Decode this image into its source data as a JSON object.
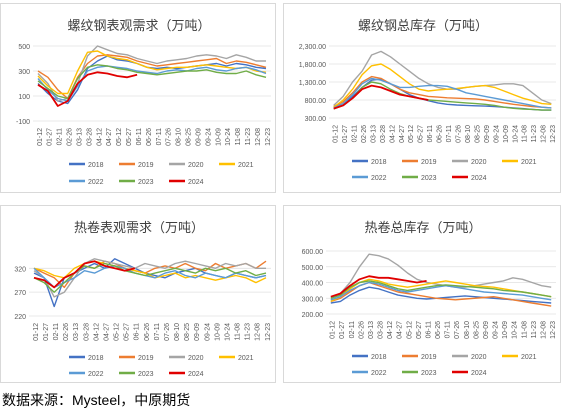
{
  "x_labels": [
    "01-12",
    "01-27",
    "02-11",
    "02-26",
    "03-13",
    "03-28",
    "04-12",
    "04-27",
    "05-12",
    "05-27",
    "06-11",
    "06-26",
    "07-11",
    "07-26",
    "08-10",
    "08-25",
    "09-09",
    "09-24",
    "10-09",
    "10-24",
    "11-08",
    "11-23",
    "12-08",
    "12-23"
  ],
  "series_names": [
    "2018",
    "2019",
    "2020",
    "2021",
    "2022",
    "2023",
    "2024"
  ],
  "colors": {
    "2018": "#4472c4",
    "2019": "#ed7d31",
    "2020": "#a5a5a5",
    "2021": "#ffc000",
    "2022": "#5b9bd5",
    "2023": "#70ad47",
    "2024": "#e00000"
  },
  "source_text": "数据来源：Mysteel，中原期货",
  "chart_data": [
    {
      "type": "line",
      "title": "螺纹钢表观需求（万吨）",
      "ylim": [
        -100,
        500
      ],
      "yticks": [
        "500",
        "300",
        "100",
        "-100"
      ],
      "ytick_values": [
        500,
        300,
        100,
        -100
      ],
      "series": [
        {
          "name": "2018",
          "values": [
            200,
            120,
            60,
            40,
            150,
            320,
            380,
            420,
            390,
            380,
            360,
            330,
            320,
            330,
            320,
            330,
            340,
            350,
            360,
            340,
            360,
            350,
            330,
            320
          ]
        },
        {
          "name": "2019",
          "values": [
            300,
            250,
            150,
            80,
            250,
            360,
            420,
            430,
            420,
            410,
            380,
            360,
            340,
            350,
            360,
            370,
            380,
            390,
            400,
            360,
            380,
            370,
            350,
            330
          ]
        },
        {
          "name": "2020",
          "values": [
            280,
            200,
            60,
            80,
            200,
            420,
            500,
            470,
            440,
            430,
            400,
            380,
            360,
            380,
            390,
            400,
            420,
            430,
            420,
            400,
            430,
            410,
            380,
            380
          ]
        },
        {
          "name": "2021",
          "values": [
            260,
            180,
            120,
            120,
            300,
            450,
            460,
            420,
            400,
            390,
            360,
            330,
            310,
            320,
            330,
            330,
            340,
            350,
            340,
            330,
            320,
            330,
            300,
            290
          ]
        },
        {
          "name": "2022",
          "values": [
            240,
            150,
            80,
            60,
            180,
            300,
            330,
            340,
            330,
            320,
            300,
            290,
            280,
            300,
            310,
            300,
            320,
            330,
            310,
            300,
            320,
            330,
            310,
            280
          ]
        },
        {
          "name": "2023",
          "values": [
            220,
            160,
            100,
            80,
            240,
            330,
            350,
            340,
            320,
            310,
            290,
            280,
            270,
            280,
            290,
            300,
            300,
            310,
            290,
            280,
            280,
            300,
            270,
            250
          ]
        },
        {
          "name": "2024",
          "values": [
            190,
            140,
            20,
            60,
            200,
            270,
            290,
            280,
            260,
            250,
            270
          ]
        }
      ]
    },
    {
      "type": "line",
      "title": "螺纹钢总库存（万吨）",
      "ylim": [
        300,
        2300
      ],
      "yticks": [
        "2,300.00",
        "1,800.00",
        "1,300.00",
        "800.00",
        "300.00"
      ],
      "ytick_values": [
        2300,
        1800,
        1300,
        800,
        300
      ],
      "series": [
        {
          "name": "2018",
          "values": [
            600,
            700,
            900,
            1150,
            1350,
            1380,
            1250,
            1100,
            950,
            850,
            780,
            720,
            680,
            660,
            650,
            640,
            630,
            620,
            600,
            580,
            560,
            540,
            520,
            520
          ]
        },
        {
          "name": "2019",
          "values": [
            620,
            750,
            1000,
            1300,
            1450,
            1400,
            1250,
            1100,
            1000,
            950,
            900,
            880,
            860,
            850,
            840,
            830,
            800,
            760,
            720,
            680,
            650,
            620,
            600,
            580
          ]
        },
        {
          "name": "2020",
          "values": [
            650,
            900,
            1300,
            1600,
            2050,
            2150,
            2000,
            1800,
            1600,
            1400,
            1250,
            1150,
            1100,
            1100,
            1150,
            1180,
            1200,
            1220,
            1250,
            1250,
            1200,
            1000,
            800,
            700
          ]
        },
        {
          "name": "2021",
          "values": [
            600,
            800,
            1100,
            1500,
            1750,
            1800,
            1650,
            1450,
            1250,
            1100,
            1050,
            1080,
            1100,
            1120,
            1150,
            1180,
            1200,
            1150,
            1050,
            950,
            850,
            780,
            700,
            680
          ]
        },
        {
          "name": "2022",
          "values": [
            580,
            700,
            950,
            1250,
            1400,
            1350,
            1250,
            1150,
            1150,
            1180,
            1200,
            1200,
            1180,
            1100,
            1000,
            950,
            900,
            850,
            800,
            750,
            700,
            650,
            600,
            580
          ]
        },
        {
          "name": "2023",
          "values": [
            550,
            650,
            850,
            1150,
            1300,
            1250,
            1100,
            980,
            900,
            850,
            800,
            780,
            760,
            740,
            720,
            700,
            680,
            650,
            600,
            570,
            550,
            540,
            520,
            520
          ]
        },
        {
          "name": "2024",
          "values": [
            560,
            650,
            850,
            1100,
            1200,
            1150,
            1050,
            950,
            900,
            850,
            800
          ]
        }
      ]
    },
    {
      "type": "line",
      "title": "热卷表观需求（万吨）",
      "ylim": [
        220,
        350
      ],
      "yticks": [
        "320",
        "270",
        "220"
      ],
      "ytick_values": [
        320,
        270,
        220
      ],
      "series": [
        {
          "name": "2018",
          "values": [
            310,
            300,
            240,
            300,
            310,
            320,
            330,
            320,
            340,
            330,
            320,
            310,
            305,
            300,
            310,
            315,
            320,
            310,
            305,
            300,
            310,
            305,
            300,
            305
          ]
        },
        {
          "name": "2019",
          "values": [
            320,
            310,
            300,
            280,
            310,
            325,
            320,
            335,
            330,
            320,
            315,
            310,
            320,
            325,
            320,
            330,
            320,
            315,
            330,
            320,
            325,
            330,
            320,
            335
          ]
        },
        {
          "name": "2020",
          "values": [
            315,
            300,
            260,
            270,
            300,
            330,
            340,
            335,
            330,
            325,
            320,
            330,
            325,
            320,
            330,
            335,
            330,
            325,
            320,
            330,
            325,
            330,
            320,
            320
          ]
        },
        {
          "name": "2021",
          "values": [
            320,
            315,
            305,
            300,
            320,
            330,
            335,
            330,
            325,
            320,
            315,
            310,
            300,
            305,
            310,
            300,
            305,
            300,
            295,
            300,
            305,
            300,
            290,
            300
          ]
        },
        {
          "name": "2022",
          "values": [
            320,
            300,
            280,
            290,
            300,
            315,
            310,
            320,
            325,
            320,
            310,
            305,
            300,
            310,
            315,
            305,
            300,
            310,
            305,
            300,
            310,
            305,
            300,
            305
          ]
        },
        {
          "name": "2023",
          "values": [
            300,
            290,
            270,
            290,
            310,
            325,
            320,
            330,
            325,
            315,
            310,
            305,
            310,
            315,
            320,
            315,
            310,
            320,
            315,
            320,
            310,
            315,
            305,
            310
          ]
        },
        {
          "name": "2024",
          "values": [
            300,
            295,
            280,
            300,
            310,
            330,
            335,
            325,
            320,
            315,
            320
          ]
        }
      ]
    },
    {
      "type": "line",
      "title": "热卷总库存（万吨）",
      "ylim": [
        200,
        600
      ],
      "yticks": [
        "600.00",
        "500.00",
        "400.00",
        "300.00",
        "200.00"
      ],
      "ytick_values": [
        600,
        500,
        400,
        300,
        200
      ],
      "series": [
        {
          "name": "2018",
          "values": [
            270,
            280,
            320,
            350,
            370,
            360,
            340,
            320,
            310,
            300,
            295,
            300,
            305,
            310,
            315,
            310,
            305,
            300,
            295,
            290,
            285,
            280,
            275,
            270
          ]
        },
        {
          "name": "2019",
          "values": [
            280,
            300,
            340,
            380,
            400,
            380,
            360,
            340,
            330,
            320,
            310,
            300,
            295,
            290,
            295,
            300,
            305,
            310,
            300,
            290,
            280,
            270,
            260,
            250
          ]
        },
        {
          "name": "2020",
          "values": [
            300,
            330,
            400,
            500,
            580,
            570,
            550,
            510,
            460,
            420,
            400,
            390,
            380,
            370,
            370,
            380,
            390,
            400,
            410,
            430,
            420,
            400,
            380,
            370
          ]
        },
        {
          "name": "2021",
          "values": [
            280,
            310,
            360,
            400,
            420,
            410,
            390,
            380,
            370,
            380,
            390,
            400,
            410,
            400,
            390,
            380,
            375,
            370,
            360,
            350,
            340,
            330,
            320,
            310
          ]
        },
        {
          "name": "2022",
          "values": [
            290,
            310,
            350,
            380,
            400,
            390,
            370,
            350,
            340,
            350,
            360,
            370,
            380,
            370,
            360,
            350,
            340,
            335,
            330,
            325,
            320,
            310,
            300,
            290
          ]
        },
        {
          "name": "2023",
          "values": [
            300,
            320,
            370,
            400,
            410,
            400,
            380,
            360,
            350,
            360,
            370,
            380,
            385,
            380,
            375,
            370,
            365,
            360,
            350,
            345,
            340,
            330,
            320,
            310
          ]
        },
        {
          "name": "2024",
          "values": [
            310,
            330,
            380,
            420,
            440,
            430,
            430,
            420,
            410,
            400,
            410
          ]
        }
      ]
    }
  ]
}
